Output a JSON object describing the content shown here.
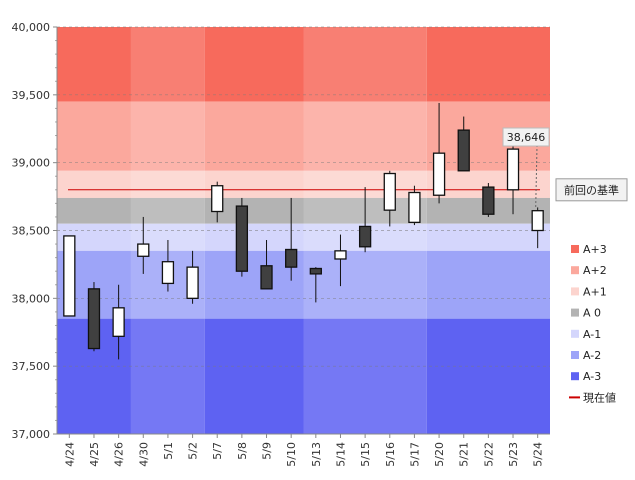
{
  "chart_data": {
    "type": "candlestick",
    "title": "",
    "xlabel": "",
    "ylabel": "",
    "ylim": [
      37000,
      40000
    ],
    "y_ticks": [
      37000,
      37500,
      38000,
      38500,
      39000,
      39500,
      40000
    ],
    "y_tick_labels": [
      "37,000",
      "37,500",
      "38,000",
      "38,500",
      "39,000",
      "39,500",
      "40,000"
    ],
    "categories": [
      "4/24",
      "4/25",
      "4/26",
      "4/30",
      "5/1",
      "5/2",
      "5/7",
      "5/8",
      "5/9",
      "5/10",
      "5/13",
      "5/14",
      "5/15",
      "5/16",
      "5/17",
      "5/20",
      "5/21",
      "5/22",
      "5/23",
      "5/24"
    ],
    "ohlc": [
      {
        "open": 37870,
        "high": 38460,
        "low": 37870,
        "close": 38460
      },
      {
        "open": 38070,
        "high": 38120,
        "low": 37610,
        "close": 37630
      },
      {
        "open": 37720,
        "high": 38100,
        "low": 37550,
        "close": 37930
      },
      {
        "open": 38310,
        "high": 38600,
        "low": 38180,
        "close": 38400
      },
      {
        "open": 38110,
        "high": 38430,
        "low": 38050,
        "close": 38270
      },
      {
        "open": 38000,
        "high": 38350,
        "low": 37960,
        "close": 38230
      },
      {
        "open": 38640,
        "high": 38860,
        "low": 38560,
        "close": 38830
      },
      {
        "open": 38680,
        "high": 38740,
        "low": 38160,
        "close": 38200
      },
      {
        "open": 38240,
        "high": 38430,
        "low": 38070,
        "close": 38070
      },
      {
        "open": 38360,
        "high": 38740,
        "low": 38130,
        "close": 38230
      },
      {
        "open": 38220,
        "high": 38230,
        "low": 37970,
        "close": 38180
      },
      {
        "open": 38290,
        "high": 38470,
        "low": 38090,
        "close": 38350
      },
      {
        "open": 38530,
        "high": 38820,
        "low": 38340,
        "close": 38380
      },
      {
        "open": 38650,
        "high": 38940,
        "low": 38530,
        "close": 38920
      },
      {
        "open": 38560,
        "high": 38830,
        "low": 38540,
        "close": 38780
      },
      {
        "open": 38760,
        "high": 39440,
        "low": 38700,
        "close": 39070
      },
      {
        "open": 39240,
        "high": 39340,
        "low": 38940,
        "close": 38940
      },
      {
        "open": 38820,
        "high": 38850,
        "low": 38600,
        "close": 38620
      },
      {
        "open": 38800,
        "high": 39120,
        "low": 38620,
        "close": 39100
      },
      {
        "open": 38500,
        "high": 38670,
        "low": 38370,
        "close": 38646
      }
    ],
    "bands": [
      {
        "name": "A+3",
        "from": 39450,
        "to": 40000,
        "color": "#f76a5c"
      },
      {
        "name": "A+2",
        "from": 38940,
        "to": 39450,
        "color": "#fba89d"
      },
      {
        "name": "A+1",
        "from": 38740,
        "to": 38940,
        "color": "#fcd4ce"
      },
      {
        "name": "A 0",
        "from": 38550,
        "to": 38740,
        "color": "#b3b3b3"
      },
      {
        "name": "A-1",
        "from": 38350,
        "to": 38550,
        "color": "#d4d6fc"
      },
      {
        "name": "A-2",
        "from": 37850,
        "to": 38350,
        "color": "#9da4f8"
      },
      {
        "name": "A-3",
        "from": 37000,
        "to": 37850,
        "color": "#5e62f2"
      }
    ],
    "current_value_line": {
      "name": "現在値",
      "value": 38800,
      "color": "#cc0000"
    },
    "reference_label": "前回の基準",
    "last_value_label": "38,646",
    "legend_position": "right",
    "colors": {
      "up_body": "#ffffff",
      "down_body": "#404040",
      "stroke": "#111111"
    }
  }
}
